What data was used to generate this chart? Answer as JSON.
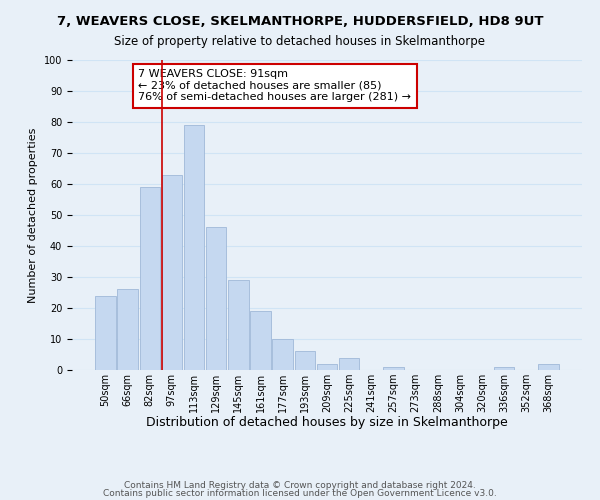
{
  "title": "7, WEAVERS CLOSE, SKELMANTHORPE, HUDDERSFIELD, HD8 9UT",
  "subtitle": "Size of property relative to detached houses in Skelmanthorpe",
  "xlabel": "Distribution of detached houses by size in Skelmanthorpe",
  "ylabel": "Number of detached properties",
  "bar_labels": [
    "50sqm",
    "66sqm",
    "82sqm",
    "97sqm",
    "113sqm",
    "129sqm",
    "145sqm",
    "161sqm",
    "177sqm",
    "193sqm",
    "209sqm",
    "225sqm",
    "241sqm",
    "257sqm",
    "273sqm",
    "288sqm",
    "304sqm",
    "320sqm",
    "336sqm",
    "352sqm",
    "368sqm"
  ],
  "bar_values": [
    24,
    26,
    59,
    63,
    79,
    46,
    29,
    19,
    10,
    6,
    2,
    4,
    0,
    1,
    0,
    0,
    0,
    0,
    1,
    0,
    2
  ],
  "bar_color": "#c5d8f0",
  "bar_edge_color": "#a0b8d8",
  "grid_color": "#d0e4f5",
  "background_color": "#e8f0f8",
  "vline_color": "#cc0000",
  "vline_x_index": 2.55,
  "annotation_title": "7 WEAVERS CLOSE: 91sqm",
  "annotation_line1": "← 23% of detached houses are smaller (85)",
  "annotation_line2": "76% of semi-detached houses are larger (281) →",
  "annotation_box_color": "#ffffff",
  "annotation_border_color": "#cc0000",
  "ylim": [
    0,
    100
  ],
  "footnote1": "Contains HM Land Registry data © Crown copyright and database right 2024.",
  "footnote2": "Contains public sector information licensed under the Open Government Licence v3.0.",
  "title_fontsize": 9.5,
  "subtitle_fontsize": 8.5,
  "xlabel_fontsize": 9,
  "ylabel_fontsize": 8,
  "tick_fontsize": 7,
  "annotation_fontsize": 8,
  "footnote_fontsize": 6.5
}
